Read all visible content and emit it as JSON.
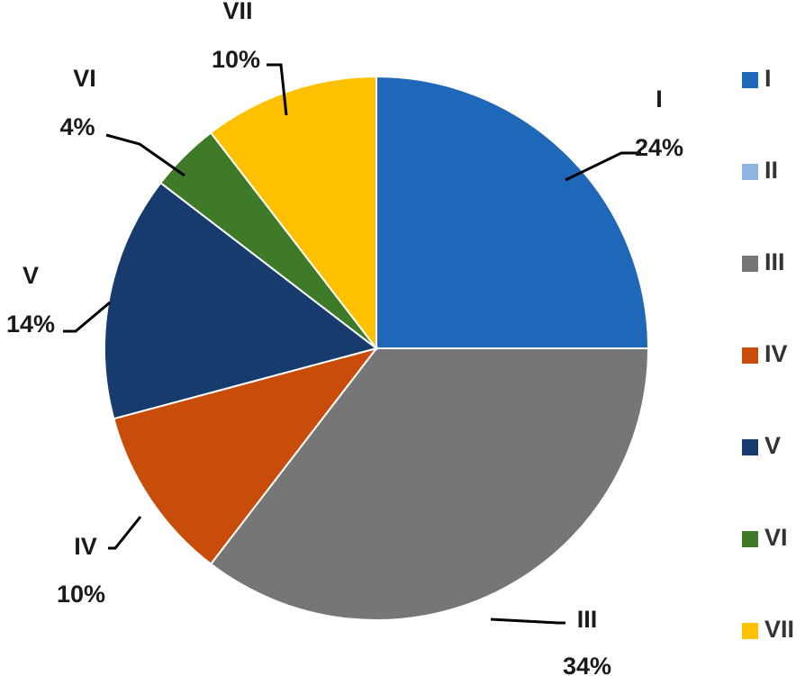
{
  "chart_data": {
    "type": "pie",
    "title": "",
    "start_angle_deg": 0,
    "direction": "clockwise",
    "slices": [
      {
        "label": "I",
        "value": 24,
        "value_label": "24%",
        "color": "#1F67B8"
      },
      {
        "label": "II",
        "value": 0,
        "value_label": "",
        "color": "#8DB4E2"
      },
      {
        "label": "III",
        "value": 34,
        "value_label": "34%",
        "color": "#767676"
      },
      {
        "label": "IV",
        "value": 10,
        "value_label": "10%",
        "color": "#C84C0A"
      },
      {
        "label": "V",
        "value": 14,
        "value_label": "14%",
        "color": "#183B6E"
      },
      {
        "label": "VI",
        "value": 4,
        "value_label": "4%",
        "color": "#3E7A28"
      },
      {
        "label": "VII",
        "value": 10,
        "value_label": "10%",
        "color": "#FFC000"
      }
    ],
    "legend": {
      "placement": "right",
      "entries": [
        "I",
        "II",
        "III",
        "IV",
        "V",
        "VI",
        "VII"
      ]
    }
  }
}
